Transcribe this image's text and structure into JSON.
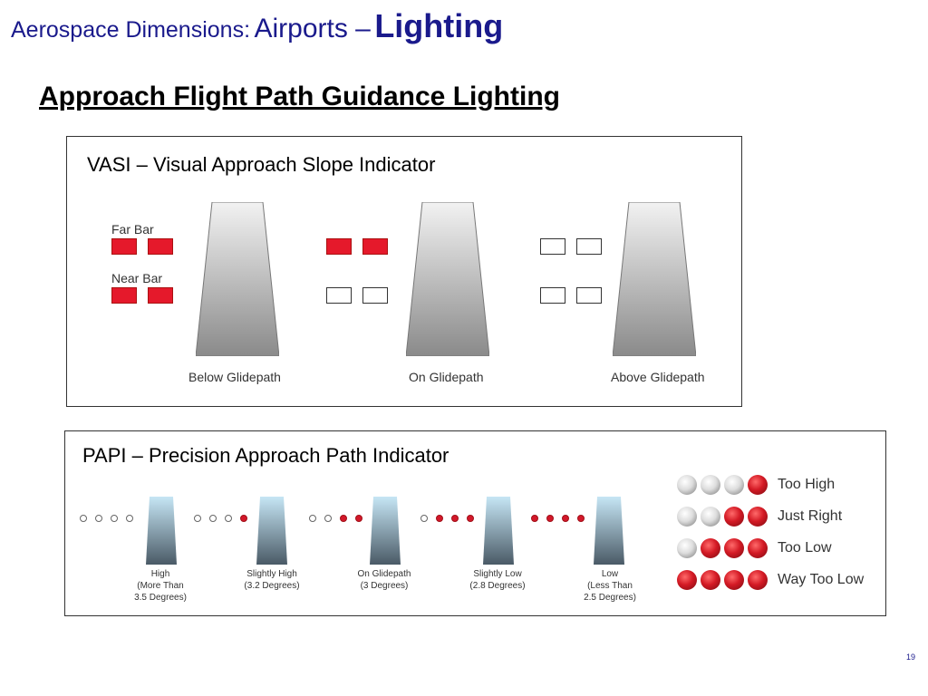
{
  "header": {
    "prefix": "Aerospace Dimensions:",
    "middle": "Airports –",
    "emphasis": "Lighting"
  },
  "subtitle": "Approach Flight Path Guidance Lighting",
  "vasi": {
    "title": "VASI – Visual Approach Slope Indicator",
    "far_bar_label": "Far Bar",
    "near_bar_label": "Near Bar",
    "states": [
      {
        "caption": "Below Glidepath",
        "far": [
          "red",
          "red"
        ],
        "near": [
          "red",
          "red"
        ]
      },
      {
        "caption": "On Glidepath",
        "far": [
          "red",
          "red"
        ],
        "near": [
          "white",
          "white"
        ]
      },
      {
        "caption": "Above Glidepath",
        "far": [
          "white",
          "white"
        ],
        "near": [
          "white",
          "white"
        ]
      }
    ]
  },
  "papi": {
    "title": "PAPI – Precision Approach Path Indicator",
    "states": [
      {
        "lines": [
          "High",
          "(More Than",
          "3.5 Degrees)"
        ],
        "lights": [
          "w",
          "w",
          "w",
          "w"
        ]
      },
      {
        "lines": [
          "Slightly High",
          "(3.2 Degrees)"
        ],
        "lights": [
          "w",
          "w",
          "w",
          "r"
        ]
      },
      {
        "lines": [
          "On Glidepath",
          "(3 Degrees)"
        ],
        "lights": [
          "w",
          "w",
          "r",
          "r"
        ]
      },
      {
        "lines": [
          "Slightly Low",
          "(2.8 Degrees)"
        ],
        "lights": [
          "w",
          "r",
          "r",
          "r"
        ]
      },
      {
        "lines": [
          "Low",
          "(Less Than",
          "2.5 Degrees)"
        ],
        "lights": [
          "r",
          "r",
          "r",
          "r"
        ]
      }
    ],
    "legend": [
      {
        "label": "Too High",
        "lights": [
          "w",
          "w",
          "w",
          "r"
        ]
      },
      {
        "label": "Just Right",
        "lights": [
          "w",
          "w",
          "r",
          "r"
        ]
      },
      {
        "label": "Too Low",
        "lights": [
          "w",
          "r",
          "r",
          "r"
        ]
      },
      {
        "label": "Way Too Low",
        "lights": [
          "r",
          "r",
          "r",
          "r"
        ]
      }
    ]
  },
  "page_number": "19",
  "colors": {
    "title_blue": "#1a1a8c",
    "light_red": "#e5192b"
  }
}
